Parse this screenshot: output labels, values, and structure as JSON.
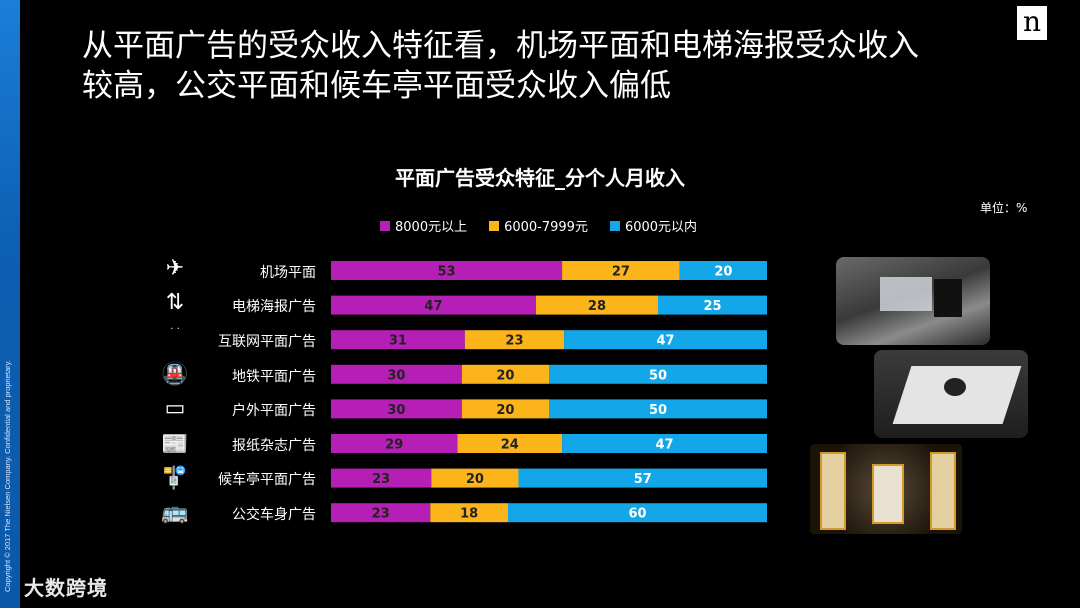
{
  "slide": {
    "headline_line1": "从平面广告的受众收入特征看，机场平面和电梯海报受众收入",
    "headline_line2": "较高，公交平面和候车亭平面受众收入偏低",
    "copyright": "Copyright © 2017 The Nielsen Company. Confidential and proprietary.",
    "logo_letter": "n",
    "watermark": "大数跨境",
    "unit_label": "单位：%"
  },
  "chart_data": {
    "type": "bar",
    "orientation": "horizontal",
    "stacked": true,
    "title": "平面广告受众特征_分个人月收入",
    "categories": [
      "机场平面",
      "电梯海报广告",
      "互联网平面广告",
      "地铁平面广告",
      "户外平面广告",
      "报纸杂志广告",
      "候车亭平面广告",
      "公交车身广告"
    ],
    "series": [
      {
        "name": "8000元以上",
        "color": "#b51fb5",
        "values": [
          53,
          47,
          31,
          30,
          30,
          29,
          23,
          23
        ]
      },
      {
        "name": "6000-7999元",
        "color": "#fbb41a",
        "values": [
          27,
          28,
          23,
          20,
          20,
          24,
          20,
          18
        ]
      },
      {
        "name": "6000元以内",
        "color": "#13a6e8",
        "values": [
          20,
          25,
          47,
          50,
          50,
          47,
          57,
          60
        ]
      }
    ],
    "legend_position": "top"
  },
  "icons": [
    "airplane-icon",
    "elevator-icon",
    "internet-icon",
    "subway-icon",
    "billboard-icon",
    "newspaper-icon",
    "bus-stop-icon",
    "bus-icon"
  ]
}
